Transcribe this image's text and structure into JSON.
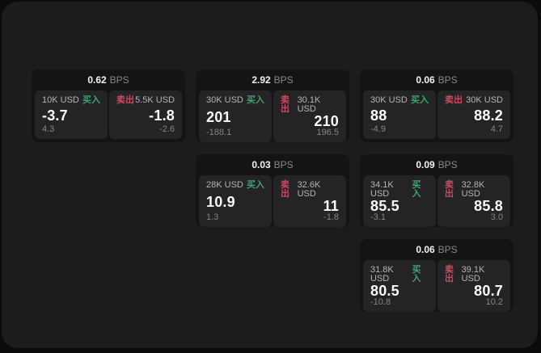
{
  "labels": {
    "bps_unit": "BPS",
    "buy": "买入",
    "sell": "卖出"
  },
  "colors": {
    "buy_green": "#3fa56a",
    "sell_red": "#ca4a5f",
    "panel_bg": "#1c1c1d",
    "card_bg": "#141416",
    "pane_bg": "#242427"
  },
  "cards": [
    {
      "bps": "0.62",
      "buy": {
        "size": "10K USD",
        "price": "-3.7",
        "sub": "4.3"
      },
      "sell": {
        "size": "5.5K USD",
        "price": "-1.8",
        "sub": "-2.6"
      }
    },
    {
      "bps": "2.92",
      "buy": {
        "size": "30K USD",
        "price": "201",
        "sub": "-188.1"
      },
      "sell": {
        "size": "30.1K USD",
        "price": "210",
        "sub": "196.5"
      }
    },
    {
      "bps": "0.06",
      "buy": {
        "size": "30K USD",
        "price": "88",
        "sub": "-4.9"
      },
      "sell": {
        "size": "30K USD",
        "price": "88.2",
        "sub": "4.7"
      }
    },
    {
      "bps": "0.03",
      "buy": {
        "size": "28K USD",
        "price": "10.9",
        "sub": "1.3"
      },
      "sell": {
        "size": "32.6K USD",
        "price": "11",
        "sub": "-1.8"
      }
    },
    {
      "bps": "0.09",
      "buy": {
        "size": "34.1K USD",
        "price": "85.5",
        "sub": "-3.1"
      },
      "sell": {
        "size": "32.8K USD",
        "price": "85.8",
        "sub": "3.0"
      }
    },
    {
      "bps": "0.06",
      "buy": {
        "size": "31.8K USD",
        "price": "80.5",
        "sub": "-10.8"
      },
      "sell": {
        "size": "39.1K USD",
        "price": "80.7",
        "sub": "10.2"
      }
    }
  ]
}
